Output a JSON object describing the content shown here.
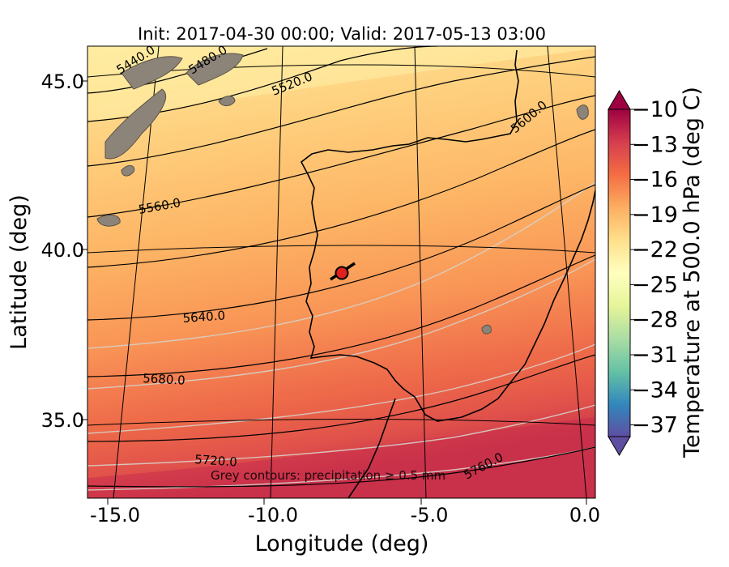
{
  "title": "Init: 2017-04-30 00:00; Valid: 2017-05-13 03:00",
  "x_axis": {
    "label": "Longitude (deg)",
    "ticks": [
      {
        "value": -15.0,
        "label": "-15.0"
      },
      {
        "value": -10.0,
        "label": "-10.0"
      },
      {
        "value": -5.0,
        "label": "-5.0"
      },
      {
        "value": 0.0,
        "label": "0.0"
      }
    ],
    "range": [
      -16.0,
      0.2
    ]
  },
  "y_axis": {
    "label": "Latitude (deg)",
    "ticks": [
      {
        "value": 45.0,
        "label": "45.0"
      },
      {
        "value": 40.0,
        "label": "40.0"
      },
      {
        "value": 35.0,
        "label": "35.0"
      }
    ],
    "range": [
      32.5,
      46.0
    ]
  },
  "colorbar": {
    "label": "Temperature at 500.0 hPa (deg C)",
    "range": [
      -38,
      -10
    ],
    "ticks": [
      {
        "value": -10,
        "label": "−10"
      },
      {
        "value": -13,
        "label": "−13"
      },
      {
        "value": -16,
        "label": "−16"
      },
      {
        "value": -19,
        "label": "−19"
      },
      {
        "value": -22,
        "label": "−22"
      },
      {
        "value": -25,
        "label": "−25"
      },
      {
        "value": -28,
        "label": "−28"
      },
      {
        "value": -31,
        "label": "−31"
      },
      {
        "value": -34,
        "label": "−34"
      },
      {
        "value": -37,
        "label": "−37"
      }
    ],
    "colormap": [
      "#5e4fa2",
      "#3288bd",
      "#66c2a5",
      "#abdda4",
      "#e6f598",
      "#ffffbf",
      "#fee08b",
      "#fdae61",
      "#f46d43",
      "#d53e4f",
      "#9e0142"
    ]
  },
  "height_contours": [
    {
      "label": "5440.0"
    },
    {
      "label": "5480.0"
    },
    {
      "label": "5520.0"
    },
    {
      "label": "5560.0"
    },
    {
      "label": "5600.0"
    },
    {
      "label": "5640.0"
    },
    {
      "label": "5680.0"
    },
    {
      "label": "5720.0"
    },
    {
      "label": "5760.0"
    }
  ],
  "annotation": "Grey contours: precipitation ≥ 0.5 mm",
  "marker": {
    "lon": -7.7,
    "lat": 39.3,
    "color": "#e02020"
  }
}
